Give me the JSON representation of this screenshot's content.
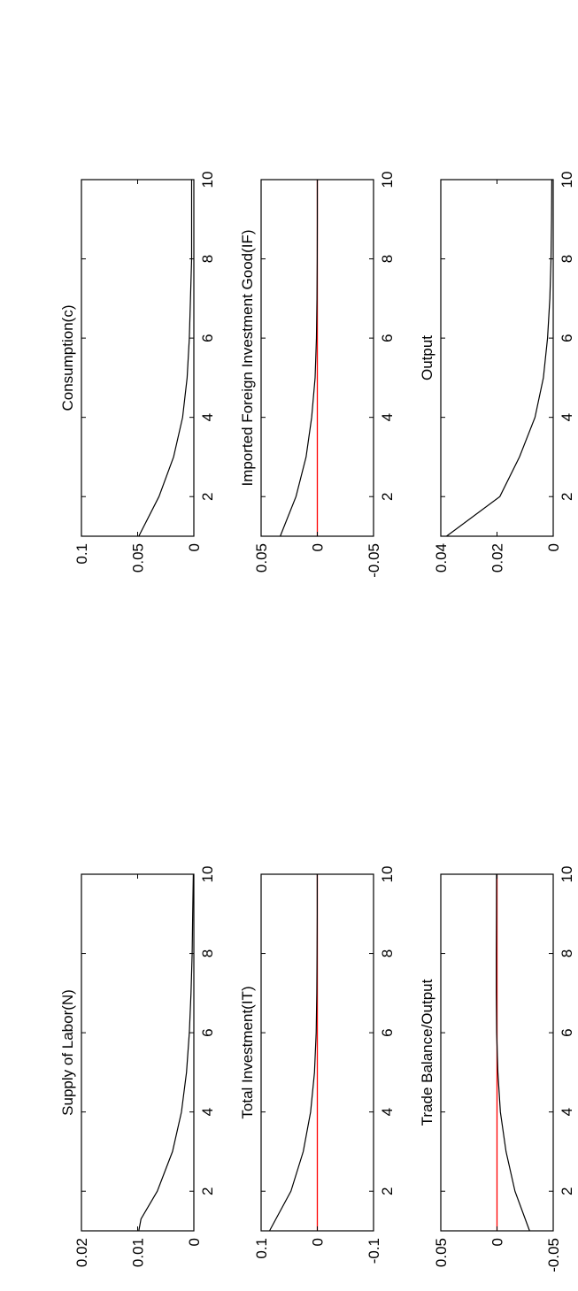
{
  "figure": {
    "orientation": "rotated 90 degrees counter-clockwise",
    "colors": {
      "axes": "#000000",
      "series": "#000000",
      "zero_line": "#ff0000"
    }
  },
  "chart_data": [
    {
      "type": "line",
      "title": "Supply of Labor(N)",
      "xlim": [
        1,
        10
      ],
      "ylim": [
        0,
        0.02
      ],
      "xticks": [
        "2",
        "4",
        "6",
        "8",
        "10"
      ],
      "yticks": [
        "0",
        "0.01",
        "0.02"
      ],
      "zero_line": false,
      "x": [
        1,
        1.3,
        2,
        3,
        4,
        5,
        6,
        7,
        8,
        9,
        10
      ],
      "y": [
        0.0098,
        0.0094,
        0.0065,
        0.0038,
        0.0022,
        0.0013,
        0.0008,
        0.0005,
        0.0003,
        0.0002,
        0.0001
      ]
    },
    {
      "type": "line",
      "title": "Total Investment(IT)",
      "xlim": [
        1,
        10
      ],
      "ylim": [
        -0.1,
        0.1
      ],
      "xticks": [
        "2",
        "4",
        "6",
        "8",
        "10"
      ],
      "yticks": [
        "-0.1",
        "0",
        "0.1"
      ],
      "zero_line": true,
      "x": [
        1,
        2,
        3,
        4,
        5,
        6,
        7,
        8,
        9,
        10
      ],
      "y": [
        0.085,
        0.047,
        0.025,
        0.012,
        0.005,
        0.002,
        0.001,
        0.0005,
        0.0002,
        0.0001
      ]
    },
    {
      "type": "line",
      "title": "Trade Balance/Output",
      "xlim": [
        1,
        10
      ],
      "ylim": [
        -0.05,
        0.05
      ],
      "xticks": [
        "2",
        "4",
        "6",
        "8",
        "10"
      ],
      "yticks": [
        "-0.05",
        "0",
        "0.05"
      ],
      "zero_line": true,
      "x": [
        1,
        2,
        3,
        4,
        5,
        6,
        7,
        8,
        9,
        10
      ],
      "y": [
        -0.029,
        -0.016,
        -0.008,
        -0.003,
        -0.0008,
        0.0003,
        0.0006,
        0.0006,
        0.0005,
        0.0004
      ]
    },
    {
      "type": "line",
      "title": "Consumption(c)",
      "xlim": [
        1,
        10
      ],
      "ylim": [
        0,
        0.1
      ],
      "xticks": [
        "2",
        "4",
        "6",
        "8",
        "10"
      ],
      "yticks": [
        "0",
        "0.05",
        "0.1"
      ],
      "zero_line": false,
      "x": [
        1,
        2,
        3,
        4,
        5,
        6,
        7,
        8,
        9,
        10
      ],
      "y": [
        0.049,
        0.031,
        0.018,
        0.01,
        0.006,
        0.004,
        0.003,
        0.002,
        0.002,
        0.002
      ]
    },
    {
      "type": "line",
      "title": "Imported Foreign Investment Good(IF)",
      "xlim": [
        1,
        10
      ],
      "ylim": [
        -0.05,
        0.05
      ],
      "xticks": [
        "2",
        "4",
        "6",
        "8",
        "10"
      ],
      "yticks": [
        "-0.05",
        "0",
        "0.05"
      ],
      "zero_line": true,
      "x": [
        1,
        2,
        3,
        4,
        5,
        6,
        7,
        8,
        9,
        10
      ],
      "y": [
        0.033,
        0.019,
        0.01,
        0.005,
        0.002,
        0.0008,
        0.0003,
        0.0001,
        0.0,
        0.0
      ]
    },
    {
      "type": "line",
      "title": "Output",
      "xlim": [
        1,
        10
      ],
      "ylim": [
        0,
        0.04
      ],
      "xticks": [
        "2",
        "4",
        "6",
        "8",
        "10"
      ],
      "yticks": [
        "0",
        "0.02",
        "0.04"
      ],
      "zero_line": false,
      "x": [
        1,
        2,
        3,
        4,
        5,
        6,
        7,
        8,
        9,
        10
      ],
      "y": [
        0.038,
        0.019,
        0.012,
        0.0065,
        0.0035,
        0.002,
        0.0012,
        0.0008,
        0.0006,
        0.0005
      ]
    }
  ]
}
